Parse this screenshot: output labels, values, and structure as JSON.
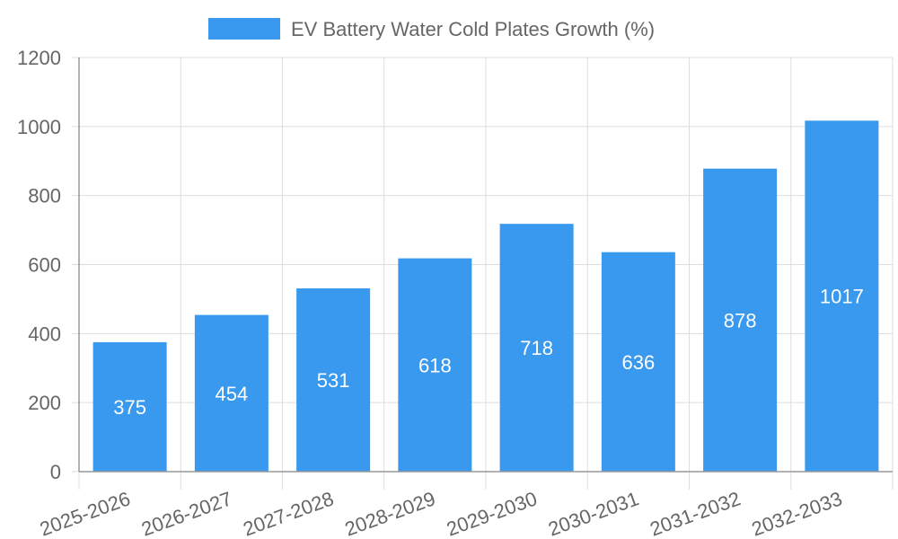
{
  "chart_data": {
    "type": "bar",
    "categories": [
      "2025-2026",
      "2026-2027",
      "2027-2028",
      "2028-2029",
      "2029-2030",
      "2030-2031",
      "2031-2032",
      "2032-2033"
    ],
    "series": [
      {
        "name": "EV Battery Water Cold Plates Growth (%)",
        "values": [
          375,
          454,
          531,
          618,
          718,
          636,
          878,
          1017
        ]
      }
    ],
    "y_ticks": [
      "0",
      "200",
      "400",
      "600",
      "800",
      "1000",
      "1200"
    ],
    "ylim": [
      0,
      1200
    ],
    "grid": true,
    "legend_position": "top-center",
    "colors": {
      "bar": "#3899ee",
      "grid": "#dddddd",
      "axis": "#999999",
      "text": "#666666",
      "bar_label": "#ffffff"
    }
  }
}
